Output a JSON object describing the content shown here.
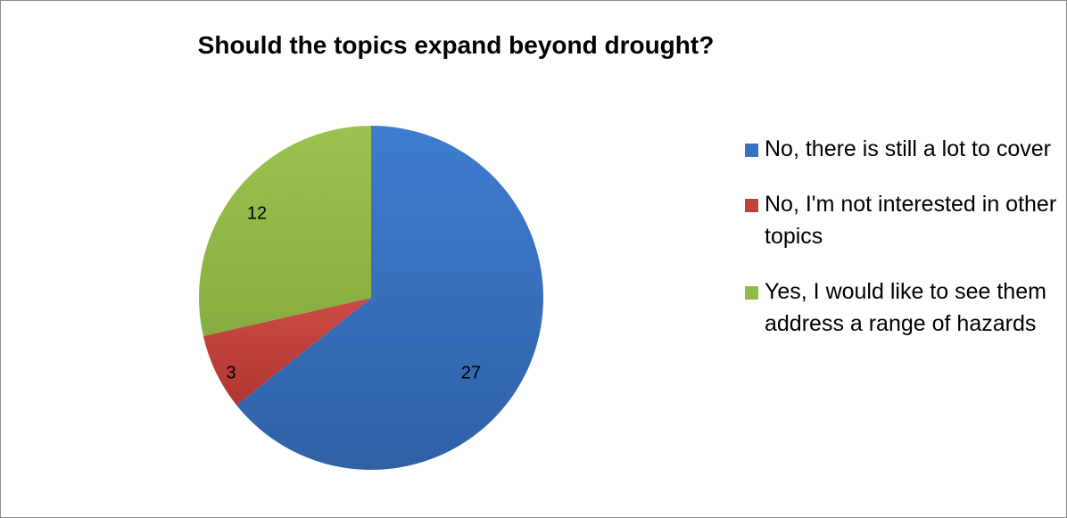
{
  "chart_data": {
    "type": "pie",
    "title": "Should the topics expand beyond drought?",
    "categories": [
      "No, there is still a lot to cover",
      "No, I'm not interested in other topics",
      "Yes, I would like to see them address a range of hazards"
    ],
    "values": [
      27,
      3,
      12
    ],
    "data_labels": [
      "27",
      "3",
      "12"
    ],
    "colors": [
      "#3a72c0",
      "#c0403c",
      "#93ba48"
    ],
    "legend_position": "right",
    "start_angle_deg": 0,
    "direction": "clockwise"
  }
}
